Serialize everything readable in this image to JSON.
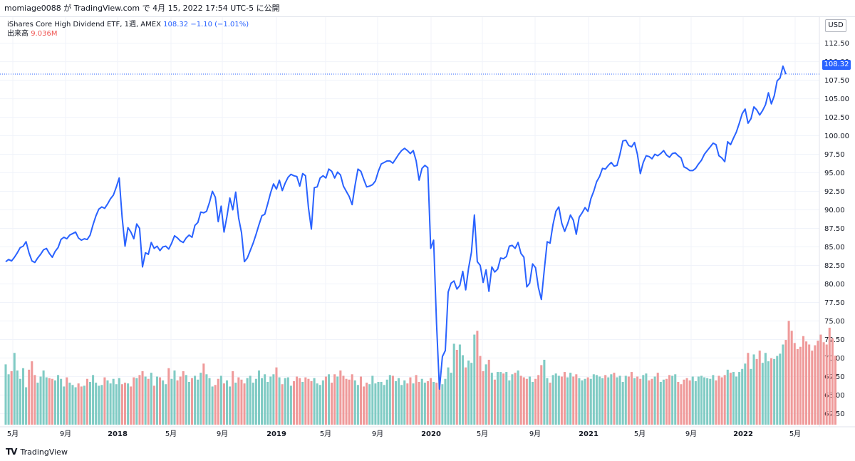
{
  "header": {
    "publish_text": "momiage0088 が TradingView.com で 4月 15, 2022 17:54 UTC-5 に公開"
  },
  "legend": {
    "symbol_info": "iShares Core High Dividend ETF, 1週, AMEX",
    "last_value": "108.32",
    "change": "−1.10 (−1.01%)",
    "volume_label": "出来高",
    "volume_value": "9.036M"
  },
  "price_axis": {
    "currency": "USD",
    "ticks": [
      "112.50",
      "110.00",
      "107.50",
      "105.00",
      "102.50",
      "100.00",
      "97.50",
      "95.00",
      "92.50",
      "90.00",
      "87.50",
      "85.00",
      "82.50",
      "80.00",
      "77.50",
      "75.00",
      "72.50",
      "70.00",
      "67.50",
      "65.00",
      "62.50"
    ],
    "current_price_tag": "108.32"
  },
  "time_axis": {
    "ticks": [
      "5月",
      "9月",
      "2018",
      "5月",
      "9月",
      "2019",
      "5月",
      "9月",
      "2020",
      "5月",
      "9月",
      "2021",
      "5月",
      "9月",
      "2022",
      "5月"
    ]
  },
  "footer": {
    "brand": "TradingView",
    "logo_text": "TV"
  },
  "colors": {
    "line": "#2962ff",
    "volume_up": "#80cbc4",
    "volume_down": "#ef9a9a",
    "grid": "#f0f3fa",
    "axis_text": "#131722"
  },
  "chart_data": {
    "type": "line",
    "title": "iShares Core High Dividend ETF, 1週, AMEX",
    "ylabel": "USD",
    "ylim": [
      61,
      114
    ],
    "x_range": [
      "2017-05",
      "2022-04"
    ],
    "series": [
      {
        "name": "iShares Core High Dividend ETF",
        "values": [
          83.0,
          83.3,
          83.1,
          83.6,
          84.2,
          84.9,
          85.1,
          85.7,
          84.2,
          83.1,
          82.9,
          83.5,
          84.0,
          84.6,
          84.8,
          84.1,
          83.6,
          84.4,
          84.9,
          86.0,
          86.3,
          86.1,
          86.6,
          86.8,
          87.0,
          86.2,
          85.9,
          86.1,
          86.0,
          86.6,
          88.0,
          89.2,
          90.1,
          90.4,
          90.2,
          90.8,
          91.5,
          92.0,
          93.1,
          94.3,
          89.0,
          85.1,
          87.6,
          87.0,
          86.1,
          88.1,
          87.5,
          82.3,
          84.2,
          84.0,
          85.6,
          84.8,
          85.1,
          84.5,
          85.0,
          85.1,
          84.7,
          85.5,
          86.5,
          86.2,
          85.8,
          85.6,
          86.2,
          86.6,
          86.3,
          87.9,
          88.3,
          89.7,
          89.6,
          89.8,
          91.0,
          92.5,
          91.7,
          88.4,
          90.5,
          87.0,
          89.1,
          91.6,
          90.0,
          92.4,
          88.9,
          86.9,
          83.0,
          83.5,
          84.5,
          85.5,
          86.7,
          88.0,
          89.2,
          89.4,
          90.8,
          92.3,
          93.5,
          92.8,
          94.0,
          92.6,
          93.6,
          94.4,
          94.8,
          94.6,
          94.5,
          93.2,
          94.9,
          94.6,
          90.3,
          87.4,
          93.0,
          93.1,
          94.3,
          94.6,
          94.3,
          95.5,
          95.2,
          94.3,
          95.1,
          94.7,
          93.2,
          92.5,
          91.8,
          90.7,
          93.3,
          95.5,
          95.2,
          94.1,
          93.1,
          93.2,
          93.4,
          93.9,
          95.2,
          96.2,
          96.4,
          96.6,
          96.6,
          96.3,
          96.9,
          97.5,
          98.0,
          98.3,
          98.0,
          97.6,
          98.0,
          96.6,
          94.0,
          95.6,
          96.0,
          95.7,
          84.8,
          85.9,
          74.6,
          65.8,
          70.2,
          71.0,
          78.9,
          80.1,
          80.4,
          79.3,
          79.8,
          81.7,
          79.2,
          82.1,
          84.3,
          89.3,
          83.0,
          82.5,
          80.2,
          81.9,
          79.0,
          82.3,
          81.6,
          82.0,
          83.5,
          83.4,
          83.7,
          85.1,
          85.2,
          84.8,
          85.6,
          84.1,
          83.6,
          79.6,
          80.1,
          82.7,
          82.2,
          79.5,
          77.9,
          81.9,
          85.7,
          85.5,
          88.0,
          89.8,
          90.4,
          88.2,
          87.1,
          88.1,
          89.3,
          88.6,
          86.7,
          89.0,
          89.6,
          90.3,
          89.8,
          91.5,
          92.5,
          93.8,
          94.5,
          95.6,
          95.5,
          96.0,
          96.4,
          95.9,
          96.0,
          97.5,
          99.3,
          99.4,
          98.7,
          98.5,
          99.1,
          97.5,
          94.9,
          96.4,
          97.3,
          97.2,
          96.9,
          97.5,
          97.3,
          97.6,
          98.0,
          97.4,
          97.1,
          97.6,
          97.7,
          97.3,
          97.0,
          95.8,
          95.6,
          95.3,
          95.3,
          95.6,
          96.2,
          96.7,
          97.5,
          98.0,
          98.5,
          99.0,
          98.8,
          97.3,
          97.0,
          96.5,
          99.2,
          98.8,
          99.7,
          100.5,
          101.7,
          103.0,
          103.6,
          101.7,
          102.3,
          103.9,
          103.5,
          102.8,
          103.4,
          104.2,
          105.8,
          104.3,
          105.4,
          107.4,
          107.8,
          109.4,
          108.32
        ]
      },
      {
        "name": "出来高",
        "unit": "M",
        "values": [
          7.9,
          6.6,
          7.0,
          9.4,
          7.1,
          6.0,
          7.4,
          4.9,
          7.2,
          8.3,
          6.5,
          5.5,
          6.3,
          7.1,
          6.2,
          6.1,
          6.0,
          5.8,
          6.5,
          6.0,
          5.0,
          6.2,
          5.5,
          5.2,
          4.9,
          5.4,
          5.0,
          5.1,
          6.0,
          5.6,
          6.5,
          5.5,
          5.1,
          5.2,
          6.2,
          5.8,
          5.4,
          6.0,
          5.3,
          6.1,
          5.3,
          5.5,
          5.4,
          5.0,
          6.2,
          6.1,
          6.5,
          7.0,
          6.3,
          6.0,
          6.8,
          5.1,
          6.3,
          6.2,
          5.8,
          5.3,
          7.4,
          6.0,
          7.1,
          5.8,
          6.3,
          7.0,
          6.5,
          5.6,
          6.1,
          6.4,
          5.9,
          6.8,
          8.0,
          6.6,
          6.1,
          5.0,
          5.2,
          6.0,
          6.4,
          5.4,
          5.8,
          5.0,
          7.0,
          5.5,
          6.2,
          5.9,
          5.4,
          6.1,
          6.4,
          5.5,
          6.0,
          7.1,
          6.1,
          6.6,
          5.6,
          6.3,
          6.6,
          7.5,
          6.2,
          5.3,
          6.1,
          6.2,
          5.1,
          5.7,
          6.3,
          6.1,
          5.6,
          6.2,
          6.0,
          5.7,
          6.1,
          5.4,
          5.2,
          5.8,
          6.3,
          6.6,
          5.5,
          6.6,
          6.3,
          7.1,
          6.4,
          6.0,
          5.9,
          6.6,
          5.8,
          5.2,
          6.3,
          5.0,
          5.5,
          5.3,
          6.4,
          5.4,
          5.6,
          5.6,
          5.2,
          5.9,
          6.5,
          6.4,
          5.7,
          6.1,
          5.2,
          5.8,
          5.4,
          6.2,
          5.4,
          6.5,
          5.6,
          6.0,
          5.5,
          5.7,
          6.1,
          5.6,
          5.5,
          6.2,
          5.3,
          6.0,
          7.5,
          6.8,
          10.6,
          9.8,
          10.5,
          9.1,
          7.5,
          8.4,
          8.1,
          11.8,
          12.3,
          9.0,
          7.0,
          7.9,
          8.5,
          6.8,
          5.9,
          6.9,
          6.9,
          6.7,
          6.9,
          5.8,
          6.6,
          6.8,
          7.1,
          6.4,
          6.2,
          6.0,
          6.3,
          5.6,
          6.0,
          6.5,
          7.8,
          8.5,
          6.1,
          5.5,
          6.5,
          6.7,
          6.4,
          6.3,
          6.9,
          6.2,
          6.8,
          6.3,
          6.6,
          6.1,
          5.8,
          6.0,
          6.2,
          6.0,
          6.6,
          6.5,
          6.3,
          6.1,
          6.5,
          6.2,
          6.6,
          6.8,
          6.2,
          6.4,
          5.6,
          6.4,
          6.3,
          6.9,
          6.1,
          6.3,
          6.0,
          6.5,
          6.7,
          5.8,
          6.0,
          6.3,
          6.8,
          5.6,
          5.9,
          6.0,
          6.5,
          6.4,
          6.6,
          5.6,
          5.3,
          5.9,
          6.1,
          5.8,
          6.3,
          5.7,
          6.3,
          6.4,
          6.2,
          6.1,
          6.0,
          6.5,
          5.8,
          6.4,
          6.2,
          6.5,
          7.2,
          6.8,
          6.9,
          6.3,
          6.9,
          7.3,
          8.0,
          9.4,
          7.3,
          9.2,
          8.6,
          9.7,
          8.1,
          9.4,
          8.3,
          8.7,
          8.6,
          9.0,
          9.3,
          10.5,
          11.1,
          13.6,
          12.3,
          10.7,
          9.9,
          10.2,
          11.6,
          10.9,
          10.5,
          9.7,
          10.4,
          11.0,
          11.8,
          10.8,
          10.5,
          12.7,
          11.3,
          9.036
        ]
      }
    ],
    "volume_colors_note": "up weeks teal, down weeks red"
  }
}
